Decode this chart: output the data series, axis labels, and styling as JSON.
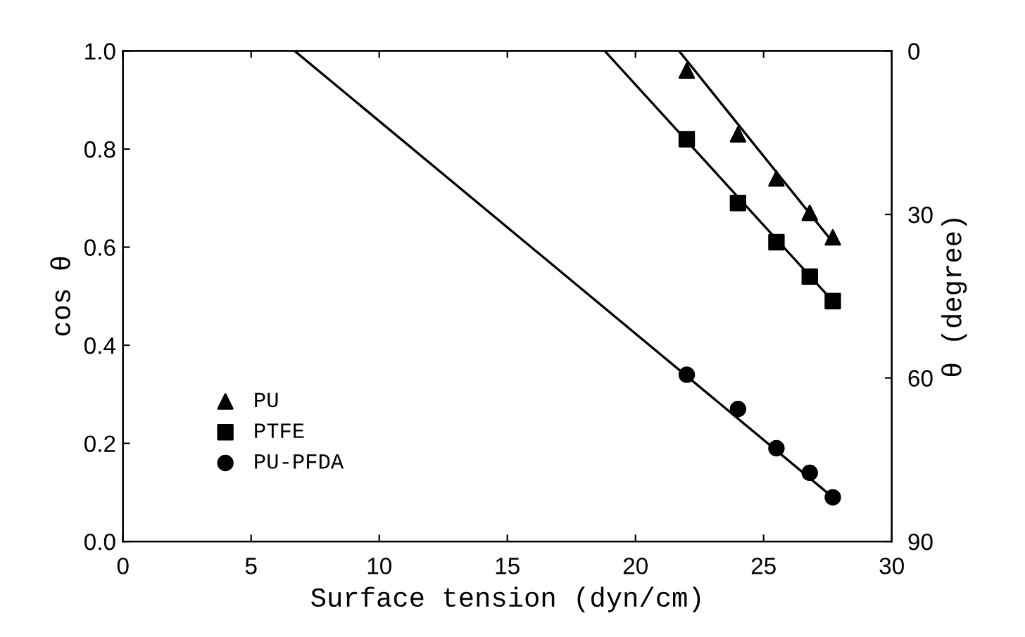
{
  "chart_data": {
    "type": "scatter",
    "xlabel": "Surface tension (dyn/cm)",
    "ylabel": "cos θ",
    "y2label": "θ (degree)",
    "xlim": [
      0,
      30
    ],
    "xticks": [
      0,
      5,
      10,
      15,
      20,
      25,
      30
    ],
    "ylim": [
      0,
      1
    ],
    "yticks": [
      {
        "value": 0,
        "label": "0.0"
      },
      0.2,
      0.4,
      0.6,
      0.8,
      {
        "value": 1,
        "label": "1.0"
      }
    ],
    "y2lim": [
      90,
      0
    ],
    "y2ticks": [
      0,
      30,
      60,
      90
    ],
    "legend": "bottom left",
    "grid": false,
    "series": [
      {
        "name": "PU",
        "marker": "triangle",
        "color": "#000000",
        "x": [
          22,
          24,
          25.5,
          26.8,
          27.7
        ],
        "values": [
          0.96,
          0.83,
          0.74,
          0.67,
          0.62
        ]
      },
      {
        "name": "PTFE",
        "marker": "square",
        "color": "#000000",
        "x": [
          22,
          24,
          25.5,
          26.8,
          27.7
        ],
        "values": [
          0.82,
          0.69,
          0.61,
          0.54,
          0.49
        ]
      },
      {
        "name": "PU-PFDA",
        "marker": "circle",
        "color": "#000000",
        "x": [
          22,
          24,
          25.5,
          26.8,
          27.7
        ],
        "values": [
          0.34,
          0.27,
          0.19,
          0.14,
          0.09
        ]
      },
      {
        "type": "line",
        "marker": "none",
        "color": "#000000",
        "x": [
          21.7,
          27.7
        ],
        "values": [
          1.0,
          0.61
        ]
      },
      {
        "type": "line",
        "marker": "none",
        "color": "#000000",
        "x": [
          18.8,
          27.7
        ],
        "values": [
          1.0,
          0.49
        ]
      },
      {
        "type": "line",
        "marker": "none",
        "color": "#000000",
        "x": [
          6.7,
          27.7
        ],
        "values": [
          1.0,
          0.09
        ]
      }
    ]
  }
}
